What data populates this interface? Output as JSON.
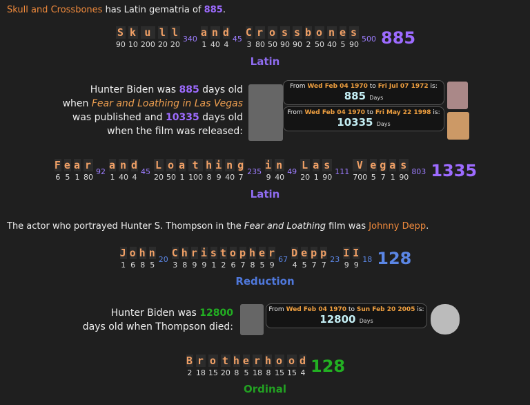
{
  "intro": {
    "phrase": "Skull and Crossbones",
    "text": "has Latin gematria of",
    "value": 885,
    "end": "."
  },
  "gematria": [
    {
      "words": [
        {
          "letters": [
            "S",
            "k",
            "u",
            "l",
            "l"
          ],
          "values": [
            90,
            10,
            200,
            20,
            20
          ],
          "sum": 340
        },
        {
          "letters": [
            "a",
            "n",
            "d"
          ],
          "values": [
            1,
            40,
            4
          ],
          "sum": 45
        },
        {
          "letters": [
            "C",
            "r",
            "o",
            "s",
            "s",
            "b",
            "o",
            "n",
            "e",
            "s"
          ],
          "values": [
            3,
            80,
            50,
            90,
            90,
            2,
            50,
            40,
            5,
            90
          ],
          "sum": 500
        }
      ],
      "total": 885,
      "cipher": "Latin",
      "sum_color": "#9d7dff",
      "total_color": "#9d6bff",
      "cipher_color": "#8f6cf0"
    },
    {
      "words": [
        {
          "letters": [
            "F",
            "e",
            "a",
            "r"
          ],
          "values": [
            6,
            5,
            1,
            80
          ],
          "sum": 92
        },
        {
          "letters": [
            "a",
            "n",
            "d"
          ],
          "values": [
            1,
            40,
            4
          ],
          "sum": 45
        },
        {
          "letters": [
            "L",
            "o",
            "a",
            "t",
            "h",
            "i",
            "n",
            "g"
          ],
          "values": [
            20,
            50,
            1,
            100,
            8,
            9,
            40,
            7
          ],
          "sum": 235
        },
        {
          "letters": [
            "i",
            "n"
          ],
          "values": [
            9,
            40
          ],
          "sum": 49
        },
        {
          "letters": [
            "L",
            "a",
            "s"
          ],
          "values": [
            20,
            1,
            90
          ],
          "sum": 111
        },
        {
          "letters": [
            "V",
            "e",
            "g",
            "a",
            "s"
          ],
          "values": [
            700,
            5,
            7,
            1,
            90
          ],
          "sum": 803
        }
      ],
      "total": 1335,
      "cipher": "Latin",
      "sum_color": "#9d7dff",
      "total_color": "#9d6bff",
      "cipher_color": "#8f6cf0"
    },
    {
      "words": [
        {
          "letters": [
            "J",
            "o",
            "h",
            "n"
          ],
          "values": [
            1,
            6,
            8,
            5
          ],
          "sum": 20
        },
        {
          "letters": [
            "C",
            "h",
            "r",
            "i",
            "s",
            "t",
            "o",
            "p",
            "h",
            "e",
            "r"
          ],
          "values": [
            3,
            8,
            9,
            9,
            1,
            2,
            6,
            7,
            8,
            5,
            9
          ],
          "sum": 67
        },
        {
          "letters": [
            "D",
            "e",
            "p",
            "p"
          ],
          "values": [
            4,
            5,
            7,
            7
          ],
          "sum": 23
        },
        {
          "letters": [
            "I",
            "I"
          ],
          "values": [
            9,
            9
          ],
          "sum": 18
        }
      ],
      "total": 128,
      "cipher": "Reduction",
      "sum_color": "#5b86e5",
      "total_color": "#5b86e5",
      "cipher_color": "#4f78dc"
    },
    {
      "words": [
        {
          "letters": [
            "B",
            "r",
            "o",
            "t",
            "h",
            "e",
            "r",
            "h",
            "o",
            "o",
            "d"
          ],
          "values": [
            2,
            18,
            15,
            20,
            8,
            5,
            18,
            8,
            15,
            15,
            4
          ]
        }
      ],
      "total": 128,
      "cipher": "Ordinal",
      "sum_color": "#22b022",
      "total_color": "#22b022",
      "cipher_color": "#22a022"
    }
  ],
  "hunter_1": {
    "parts": [
      "Hunter Biden was",
      885,
      "days old",
      "when",
      "Fear and Loathing in Las Vegas",
      "was published and",
      10335,
      "days old",
      "when the film was released:"
    ],
    "boxes": [
      {
        "from": "From",
        "start": "Wed Feb 04 1970",
        "to": "to",
        "end": "Fri Jul 07 1972",
        "is": "is:",
        "days": 885,
        "unit": "Days"
      },
      {
        "from": "From",
        "start": "Wed Feb 04 1970",
        "to": "to",
        "end": "Fri May 22 1998",
        "is": "is:",
        "days": 10335,
        "unit": "Days"
      }
    ]
  },
  "thompson": {
    "text": "The actor who portrayed Hunter S. Thompson in the",
    "film": "Fear and Loathing",
    "text_2": "film was",
    "actor": "Johnny Depp",
    "end": "."
  },
  "hunter_2": {
    "parts": [
      "Hunter Biden was",
      12800,
      "days old when Thompson died:"
    ],
    "boxes": [
      {
        "from": "From",
        "start": "Wed Feb 04 1970",
        "to": "to",
        "end": "Sun Feb 20 2005",
        "is": "is:",
        "days": 12800,
        "unit": "Days"
      }
    ]
  }
}
